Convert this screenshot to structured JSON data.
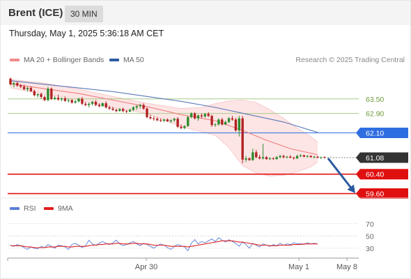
{
  "header": {
    "instrument": "Brent (ICE)",
    "timeframe": "30 MIN",
    "timestamp": "Thursday, May 1, 2025 5:36:18 AM CET"
  },
  "legend": {
    "items": [
      {
        "name": "MA 20 + Bollinger Bands",
        "color": "#f08a8a"
      },
      {
        "name": "MA 50",
        "color": "#2c5aa0"
      }
    ],
    "credit": "Research © 2025 Trading Central"
  },
  "rsi_legend": {
    "items": [
      {
        "name": "RSI",
        "color": "#5b7fd6"
      },
      {
        "name": "9MA",
        "color": "#e02020"
      }
    ]
  },
  "colors": {
    "up_candle": "#2e8b2e",
    "down_candle": "#b22222",
    "ma50": "#5a78b8",
    "ma20": "#f07c7c",
    "band_fill": "#fde0e0",
    "resistance": "#a8cc88",
    "pivot": "#2f6ee0",
    "support": "#e01010",
    "current": "#333333",
    "arrow": "#2a5aa0"
  },
  "chart_data": [
    {
      "type": "candlestick",
      "price_axis_range": [
        59.3,
        64.7
      ],
      "x_tick_labels": [
        "Apr 30",
        "May 1",
        "May 8"
      ],
      "levels": [
        {
          "label": "63.50",
          "value": 63.5,
          "kind": "resistance"
        },
        {
          "label": "62.90",
          "value": 62.9,
          "kind": "resistance"
        },
        {
          "label": "62.10",
          "value": 62.1,
          "kind": "pivot"
        },
        {
          "label": "61.08",
          "value": 61.08,
          "kind": "current"
        },
        {
          "label": "60.40",
          "value": 60.4,
          "kind": "support"
        },
        {
          "label": "59.60",
          "value": 59.6,
          "kind": "support"
        }
      ],
      "candles": [
        [
          64.33,
          64.38,
          64.05,
          64.1
        ],
        [
          64.1,
          64.2,
          63.98,
          64.15
        ],
        [
          64.15,
          64.22,
          64.0,
          64.05
        ],
        [
          64.05,
          64.12,
          63.95,
          64.0
        ],
        [
          64.0,
          64.08,
          63.85,
          63.9
        ],
        [
          63.9,
          64.0,
          63.8,
          63.95
        ],
        [
          63.95,
          64.02,
          63.78,
          63.82
        ],
        [
          63.82,
          63.88,
          63.6,
          63.65
        ],
        [
          63.65,
          63.72,
          63.55,
          63.7
        ],
        [
          63.7,
          63.75,
          63.5,
          63.58
        ],
        [
          63.58,
          63.65,
          63.4,
          63.45
        ],
        [
          63.45,
          64.0,
          63.4,
          63.92
        ],
        [
          63.92,
          63.97,
          63.45,
          63.5
        ],
        [
          63.5,
          63.62,
          63.45,
          63.55
        ],
        [
          63.55,
          63.68,
          63.42,
          63.48
        ],
        [
          63.48,
          63.55,
          63.4,
          63.52
        ],
        [
          63.52,
          63.6,
          63.38,
          63.42
        ],
        [
          63.42,
          63.5,
          63.35,
          63.45
        ],
        [
          63.45,
          63.5,
          63.3,
          63.35
        ],
        [
          63.35,
          63.45,
          63.3,
          63.4
        ],
        [
          63.4,
          63.55,
          63.35,
          63.5
        ],
        [
          63.5,
          63.58,
          63.25,
          63.3
        ],
        [
          63.3,
          63.38,
          63.2,
          63.25
        ],
        [
          63.25,
          63.35,
          63.15,
          63.3
        ],
        [
          63.3,
          63.42,
          63.22,
          63.38
        ],
        [
          63.38,
          63.45,
          63.2,
          63.25
        ],
        [
          63.25,
          63.32,
          63.15,
          63.2
        ],
        [
          63.2,
          63.35,
          63.18,
          63.32
        ],
        [
          63.32,
          63.4,
          63.1,
          63.15
        ],
        [
          63.15,
          63.22,
          63.05,
          63.1
        ],
        [
          63.1,
          63.18,
          63.0,
          63.05
        ],
        [
          63.05,
          63.1,
          62.95,
          63.0
        ],
        [
          63.0,
          63.12,
          62.98,
          63.08
        ],
        [
          63.08,
          63.15,
          62.95,
          63.0
        ],
        [
          63.0,
          63.05,
          62.92,
          62.98
        ],
        [
          62.98,
          63.1,
          62.95,
          63.05
        ],
        [
          63.05,
          63.2,
          63.0,
          63.15
        ],
        [
          63.15,
          63.25,
          63.05,
          63.2
        ],
        [
          63.2,
          63.3,
          63.1,
          63.25
        ],
        [
          63.25,
          63.32,
          63.05,
          63.1
        ],
        [
          63.1,
          63.15,
          62.7,
          62.75
        ],
        [
          62.75,
          62.85,
          62.65,
          62.7
        ],
        [
          62.7,
          62.78,
          62.6,
          62.68
        ],
        [
          62.68,
          62.75,
          62.58,
          62.62
        ],
        [
          62.62,
          62.7,
          62.55,
          62.6
        ],
        [
          62.6,
          62.68,
          62.55,
          62.65
        ],
        [
          62.65,
          62.7,
          62.55,
          62.58
        ],
        [
          62.58,
          62.65,
          62.5,
          62.62
        ],
        [
          62.62,
          62.72,
          62.55,
          62.68
        ],
        [
          62.68,
          62.75,
          62.3,
          62.35
        ],
        [
          62.35,
          62.45,
          62.25,
          62.3
        ],
        [
          62.3,
          62.42,
          62.25,
          62.38
        ],
        [
          62.38,
          62.8,
          62.35,
          62.75
        ],
        [
          62.75,
          62.95,
          62.7,
          62.9
        ],
        [
          62.9,
          62.95,
          62.65,
          62.7
        ],
        [
          62.7,
          62.85,
          62.6,
          62.82
        ],
        [
          62.82,
          62.9,
          62.7,
          62.78
        ],
        [
          62.78,
          62.92,
          62.72,
          62.88
        ],
        [
          62.88,
          62.95,
          62.75,
          62.8
        ],
        [
          62.8,
          62.85,
          62.35,
          62.42
        ],
        [
          62.42,
          62.5,
          62.35,
          62.45
        ],
        [
          62.45,
          62.7,
          62.4,
          62.65
        ],
        [
          62.65,
          62.72,
          62.4,
          62.45
        ],
        [
          62.45,
          62.6,
          62.42,
          62.55
        ],
        [
          62.55,
          62.75,
          62.5,
          62.7
        ],
        [
          62.7,
          62.8,
          62.6,
          62.65
        ],
        [
          62.65,
          62.72,
          62.15,
          62.2
        ],
        [
          62.2,
          62.8,
          61.95,
          62.7
        ],
        [
          62.7,
          62.8,
          60.85,
          61.0
        ],
        [
          61.0,
          61.15,
          60.9,
          61.05
        ],
        [
          61.05,
          61.1,
          60.95,
          60.98
        ],
        [
          60.98,
          61.45,
          60.95,
          61.3
        ],
        [
          61.3,
          61.4,
          61.05,
          61.1
        ],
        [
          61.1,
          61.2,
          61.0,
          61.05
        ],
        [
          61.05,
          61.65,
          61.0,
          61.1
        ],
        [
          61.1,
          61.15,
          61.0,
          61.02
        ],
        [
          61.02,
          61.1,
          60.98,
          61.05
        ],
        [
          61.05,
          61.1,
          61.0,
          61.02
        ],
        [
          61.02,
          61.15,
          61.0,
          61.1
        ],
        [
          61.1,
          61.2,
          61.05,
          61.15
        ],
        [
          61.15,
          61.2,
          61.05,
          61.1
        ],
        [
          61.1,
          61.15,
          61.05,
          61.12
        ],
        [
          61.12,
          61.18,
          61.05,
          61.08
        ],
        [
          61.08,
          61.12,
          61.0,
          61.05
        ],
        [
          61.05,
          61.2,
          61.02,
          61.15
        ],
        [
          61.15,
          61.22,
          61.1,
          61.18
        ],
        [
          61.18,
          61.2,
          61.1,
          61.12
        ],
        [
          61.12,
          61.18,
          61.08,
          61.15
        ],
        [
          61.15,
          61.18,
          61.08,
          61.1
        ],
        [
          61.1,
          61.15,
          61.05,
          61.12
        ],
        [
          61.12,
          61.15,
          61.05,
          61.08
        ],
        [
          61.08,
          61.12,
          61.02,
          61.1
        ],
        [
          61.1,
          61.14,
          61.05,
          61.08
        ]
      ],
      "ma50": [
        [
          0,
          64.25
        ],
        [
          10,
          64.1
        ],
        [
          20,
          63.95
        ],
        [
          30,
          63.8
        ],
        [
          40,
          63.6
        ],
        [
          50,
          63.4
        ],
        [
          60,
          63.15
        ],
        [
          70,
          62.85
        ],
        [
          80,
          62.55
        ],
        [
          90,
          62.12
        ]
      ],
      "ma20": [
        [
          0,
          64.12
        ],
        [
          10,
          63.92
        ],
        [
          20,
          63.72
        ],
        [
          30,
          63.45
        ],
        [
          40,
          63.18
        ],
        [
          50,
          62.85
        ],
        [
          60,
          62.6
        ],
        [
          68,
          62.2
        ],
        [
          75,
          61.8
        ],
        [
          82,
          61.45
        ],
        [
          90,
          61.2
        ]
      ],
      "bollinger_upper": [
        [
          0,
          64.3
        ],
        [
          10,
          64.15
        ],
        [
          20,
          63.9
        ],
        [
          30,
          63.6
        ],
        [
          40,
          63.32
        ],
        [
          50,
          63.1
        ],
        [
          56,
          63.15
        ],
        [
          60,
          63.3
        ],
        [
          64,
          63.42
        ],
        [
          68,
          63.45
        ],
        [
          72,
          63.35
        ],
        [
          76,
          63.05
        ],
        [
          80,
          62.7
        ],
        [
          84,
          62.3
        ],
        [
          88,
          61.95
        ],
        [
          90,
          61.72
        ]
      ],
      "bollinger_lower": [
        [
          0,
          63.95
        ],
        [
          10,
          63.7
        ],
        [
          20,
          63.45
        ],
        [
          30,
          63.15
        ],
        [
          40,
          62.9
        ],
        [
          50,
          62.35
        ],
        [
          56,
          62.15
        ],
        [
          60,
          62.0
        ],
        [
          64,
          61.5
        ],
        [
          68,
          60.75
        ],
        [
          72,
          60.45
        ],
        [
          76,
          60.32
        ],
        [
          80,
          60.35
        ],
        [
          84,
          60.5
        ],
        [
          88,
          60.7
        ],
        [
          90,
          60.9
        ]
      ],
      "projection": {
        "from": [
          92,
          61.08
        ],
        "to": [
          101,
          59.62
        ]
      }
    },
    {
      "type": "line",
      "ylim": [
        15,
        80
      ],
      "y_tick_labels": [
        "70",
        "50",
        "30"
      ],
      "y_ticks": [
        70,
        50,
        30
      ],
      "series": [
        {
          "name": "RSI",
          "values": [
            35,
            33,
            36,
            34,
            31,
            28,
            32,
            30,
            29,
            33,
            31,
            36,
            33,
            30,
            35,
            34,
            32,
            28,
            36,
            38,
            35,
            31,
            34,
            43,
            37,
            35,
            38,
            41,
            38,
            36,
            39,
            43,
            37,
            34,
            36,
            39,
            41,
            37,
            34,
            38,
            36,
            33,
            30,
            34,
            37,
            35,
            31,
            28,
            33,
            36,
            34,
            32,
            26,
            38,
            44,
            37,
            41,
            39,
            42,
            45,
            41,
            47,
            43,
            40,
            44,
            41,
            38,
            33,
            40,
            36,
            30,
            38,
            35,
            32,
            37,
            35,
            33,
            36,
            34,
            38,
            35,
            37,
            36,
            39,
            37,
            38,
            36,
            39,
            37,
            38,
            37
          ]
        },
        {
          "name": "9MA",
          "values": [
            34,
            34,
            34,
            34,
            33,
            32,
            32,
            31,
            31,
            31,
            31,
            32,
            32,
            32,
            33,
            33,
            33,
            32,
            32,
            33,
            33,
            33,
            33,
            34,
            35,
            35,
            36,
            36,
            37,
            37,
            37,
            38,
            38,
            37,
            37,
            37,
            38,
            38,
            37,
            37,
            37,
            36,
            35,
            35,
            35,
            35,
            34,
            33,
            33,
            33,
            33,
            33,
            32,
            33,
            34,
            35,
            36,
            37,
            38,
            39,
            40,
            41,
            42,
            42,
            42,
            42,
            41,
            40,
            40,
            39,
            38,
            37,
            36,
            35,
            35,
            35,
            34,
            34,
            34,
            35,
            35,
            35,
            35,
            36,
            36,
            36,
            37,
            37,
            37,
            37,
            37
          ]
        }
      ]
    }
  ]
}
